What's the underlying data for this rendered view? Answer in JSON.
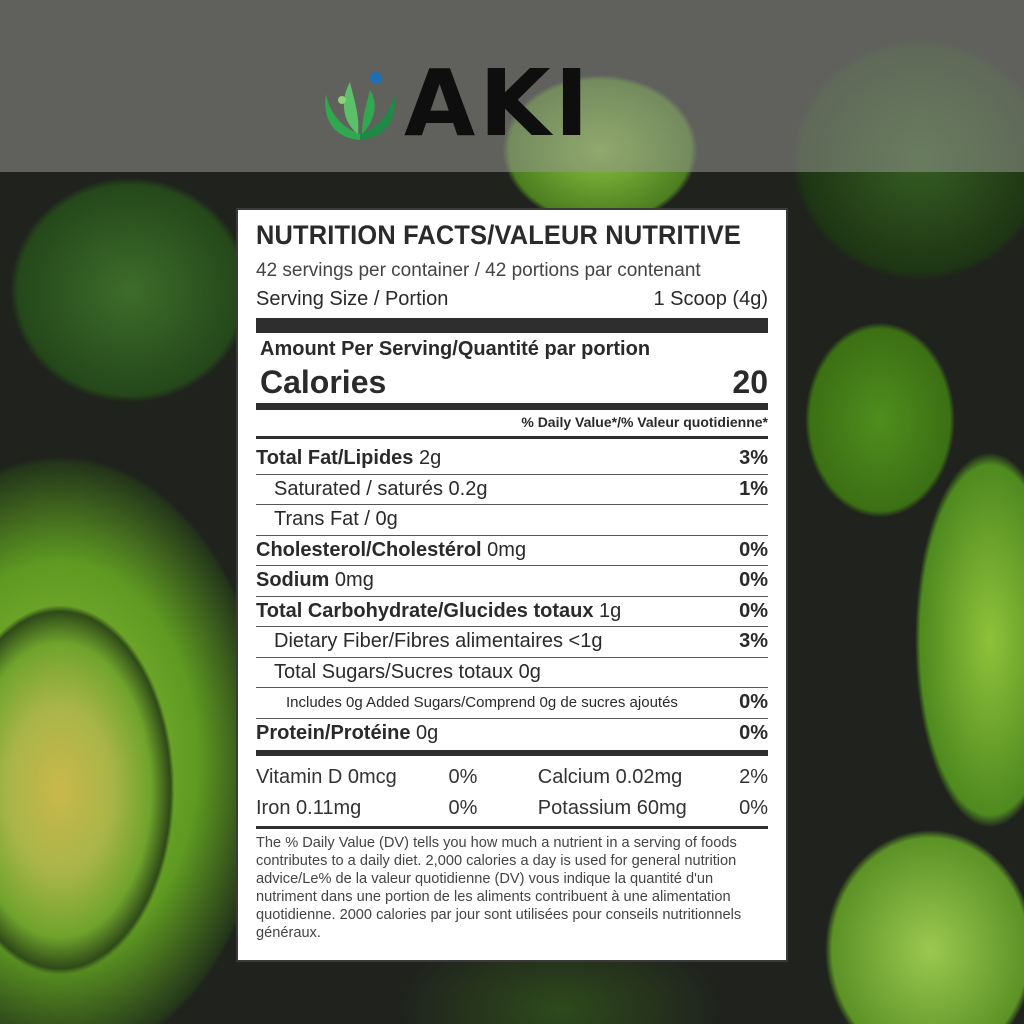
{
  "brand": {
    "name": "AKI",
    "colors": {
      "leaf": "#2fa84f",
      "dot": "#1f6fb5",
      "text": "#0e0e0e"
    }
  },
  "label": {
    "title": "NUTRITION FACTS/VALEUR NUTRITIVE",
    "servings": "42 servings per container / 42 portions par contenant",
    "serving_size_label": "Serving Size / Portion",
    "serving_size_value": "1 Scoop (4g)",
    "amount_per_serving": "Amount Per Serving/Quantité par portion",
    "calories_label": "Calories",
    "calories_value": "20",
    "dv_header": "% Daily Value*/% Valeur quotidienne*",
    "nutrients": [
      {
        "name": "Total Fat/Lipides",
        "amount": "2g",
        "dv": "3%"
      },
      {
        "name": "Saturated / saturés",
        "amount": "0.2g",
        "dv": "1%"
      },
      {
        "name": "Trans Fat /",
        "amount": "0g",
        "dv": ""
      },
      {
        "name": "Cholesterol/Cholestérol",
        "amount": "0mg",
        "dv": "0%"
      },
      {
        "name": "Sodium",
        "amount": "0mg",
        "dv": "0%"
      },
      {
        "name": "Total Carbohydrate/Glucides totaux",
        "amount": "1g",
        "dv": "0%"
      },
      {
        "name": "Dietary Fiber/Fibres alimentaires",
        "amount": "<1g",
        "dv": "3%"
      },
      {
        "name": "Total Sugars/Sucres totaux",
        "amount": "0g",
        "dv": ""
      },
      {
        "name": "Includes 0g Added Sugars/Comprend 0g de sucres ajoutés",
        "amount": "",
        "dv": "0%"
      },
      {
        "name": "Protein/Protéine",
        "amount": "0g",
        "dv": "0%"
      }
    ],
    "vitamins": [
      [
        {
          "name": "Vitamin D 0mcg",
          "dv": "0%"
        },
        {
          "name": "Calcium 0.02mg",
          "dv": "2%"
        }
      ],
      [
        {
          "name": "Iron 0.11mg",
          "dv": "0%"
        },
        {
          "name": "Potassium 60mg",
          "dv": "0%"
        }
      ]
    ],
    "footnote": "The % Daily Value (DV) tells you how much a nutrient in a serving of foods contributes to a daily diet. 2,000 calories a day is used for general nutrition advice/Le% de la valeur quotidienne (DV) vous indique la quantité d'un nutriment dans une portion de les aliments contribuent à une alimentation quotidienne. 2000 calories par jour sont utilisées pour conseils nutritionnels généraux."
  }
}
